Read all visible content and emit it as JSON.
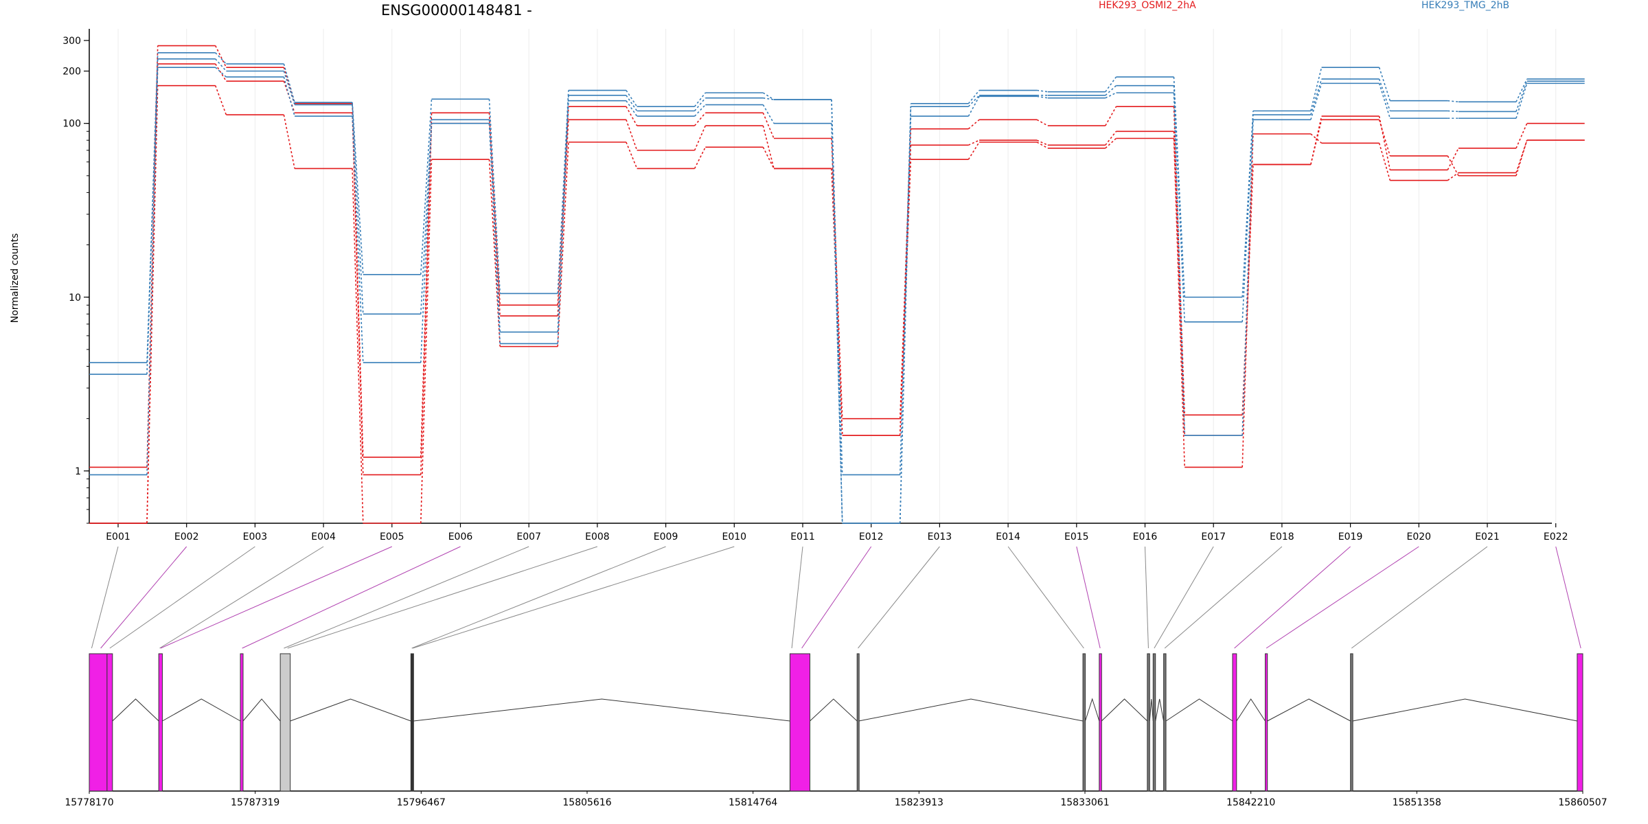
{
  "chart_data": {
    "type": "line",
    "title": "ENSG00000148481 -",
    "ylabel": "Normalized counts",
    "yscale": "log",
    "yticks": [
      1,
      10,
      100,
      200,
      300
    ],
    "ylim": [
      0.5,
      350
    ],
    "categories": [
      "E001",
      "E002",
      "E003",
      "E004",
      "E005",
      "E006",
      "E007",
      "E008",
      "E009",
      "E010",
      "E011",
      "E012",
      "E013",
      "E014",
      "E015",
      "E016",
      "E017",
      "E018",
      "E019",
      "E020",
      "E021",
      "E022"
    ],
    "legend": [
      {
        "name": "HEK293_OSMI2_2hA",
        "color": "#e31a1c"
      },
      {
        "name": "HEK293_TMG_2hB",
        "color": "#377eb8"
      }
    ],
    "series": [
      {
        "group": "HEK293_OSMI2_2hA",
        "color": "#e31a1c",
        "values": [
          1.05,
          280,
          210,
          130,
          1.2,
          115,
          9,
          125,
          97,
          115,
          82,
          2,
          93,
          105,
          97,
          125,
          2.1,
          58,
          110,
          54,
          72,
          100
        ]
      },
      {
        "group": "HEK293_OSMI2_2hA",
        "color": "#e31a1c",
        "values": [
          0.5,
          220,
          175,
          115,
          0.95,
          100,
          7.8,
          105,
          70,
          97,
          55,
          1.6,
          75,
          80,
          75,
          90,
          1.6,
          58,
          105,
          65,
          50,
          80
        ]
      },
      {
        "group": "HEK293_OSMI2_2hA",
        "color": "#e31a1c",
        "values": [
          0.5,
          165,
          112,
          55,
          0.5,
          62,
          5.2,
          78,
          55,
          73,
          55,
          1.6,
          62,
          78,
          72,
          82,
          1.05,
          87,
          77,
          47,
          52,
          80
        ]
      },
      {
        "group": "HEK293_TMG_2hB",
        "color": "#377eb8",
        "values": [
          4.2,
          255,
          220,
          132,
          13.5,
          138,
          10.5,
          155,
          125,
          150,
          137,
          0.95,
          130,
          155,
          152,
          185,
          10,
          118,
          210,
          135,
          133,
          180
        ]
      },
      {
        "group": "HEK293_TMG_2hB",
        "color": "#377eb8",
        "values": [
          3.6,
          235,
          200,
          128,
          8,
          105,
          6.3,
          145,
          118,
          140,
          137,
          0.5,
          125,
          145,
          145,
          165,
          7.2,
          112,
          180,
          118,
          117,
          175
        ]
      },
      {
        "group": "HEK293_TMG_2hB",
        "color": "#377eb8",
        "values": [
          0.95,
          210,
          185,
          110,
          4.2,
          100,
          5.4,
          135,
          110,
          128,
          100,
          0.5,
          110,
          143,
          140,
          150,
          1.6,
          105,
          170,
          107,
          107,
          170
        ]
      }
    ],
    "gene_model": {
      "coordinate_ticks": [
        "15778170",
        "15787319",
        "15796467",
        "15805616",
        "15814764",
        "15823913",
        "15833061",
        "15842210",
        "15851358",
        "15860507"
      ],
      "genomic_range": [
        15778170,
        15860507
      ],
      "exons": [
        {
          "start": 15778170,
          "end": 15779150,
          "color": "#f020e6"
        },
        {
          "start": 15779150,
          "end": 15779450,
          "color": "#f020e6"
        },
        {
          "start": 15782000,
          "end": 15782200,
          "color": "#f020e6"
        },
        {
          "start": 15786500,
          "end": 15786650,
          "color": "#f020e6"
        },
        {
          "start": 15788700,
          "end": 15789250,
          "color": "#cccccc"
        },
        {
          "start": 15795900,
          "end": 15796050,
          "color": "#333333"
        },
        {
          "start": 15816800,
          "end": 15817900,
          "color": "#f020e6"
        },
        {
          "start": 15820500,
          "end": 15820600,
          "color": "#777777"
        },
        {
          "start": 15832950,
          "end": 15833080,
          "color": "#777777"
        },
        {
          "start": 15833850,
          "end": 15833980,
          "color": "#f020e6"
        },
        {
          "start": 15836500,
          "end": 15836630,
          "color": "#777777"
        },
        {
          "start": 15836820,
          "end": 15836950,
          "color": "#777777"
        },
        {
          "start": 15837400,
          "end": 15837530,
          "color": "#777777"
        },
        {
          "start": 15841200,
          "end": 15841420,
          "color": "#f020e6"
        },
        {
          "start": 15843000,
          "end": 15843120,
          "color": "#f020e6"
        },
        {
          "start": 15847700,
          "end": 15847830,
          "color": "#777777"
        },
        {
          "start": 15860200,
          "end": 15860507,
          "color": "#f020e6"
        }
      ],
      "exon_links": [
        {
          "target": 15778300,
          "color": "#888888"
        },
        {
          "target": 15778800,
          "color": "#b040b0"
        },
        {
          "target": 15779300,
          "color": "#888888"
        },
        {
          "target": 15782050,
          "color": "#888888"
        },
        {
          "target": 15782100,
          "color": "#b040b0"
        },
        {
          "target": 15786600,
          "color": "#b040b0"
        },
        {
          "target": 15788900,
          "color": "#888888"
        },
        {
          "target": 15789100,
          "color": "#888888"
        },
        {
          "target": 15795950,
          "color": "#888888"
        },
        {
          "target": 15796000,
          "color": "#888888"
        },
        {
          "target": 15816900,
          "color": "#888888"
        },
        {
          "target": 15817450,
          "color": "#b040b0"
        },
        {
          "target": 15820550,
          "color": "#888888"
        },
        {
          "target": 15833000,
          "color": "#888888"
        },
        {
          "target": 15833900,
          "color": "#b040b0"
        },
        {
          "target": 15836560,
          "color": "#888888"
        },
        {
          "target": 15836880,
          "color": "#888888"
        },
        {
          "target": 15837460,
          "color": "#888888"
        },
        {
          "target": 15841300,
          "color": "#b040b0"
        },
        {
          "target": 15843060,
          "color": "#b040b0"
        },
        {
          "target": 15847760,
          "color": "#888888"
        },
        {
          "target": 15860400,
          "color": "#b040b0"
        }
      ]
    }
  }
}
